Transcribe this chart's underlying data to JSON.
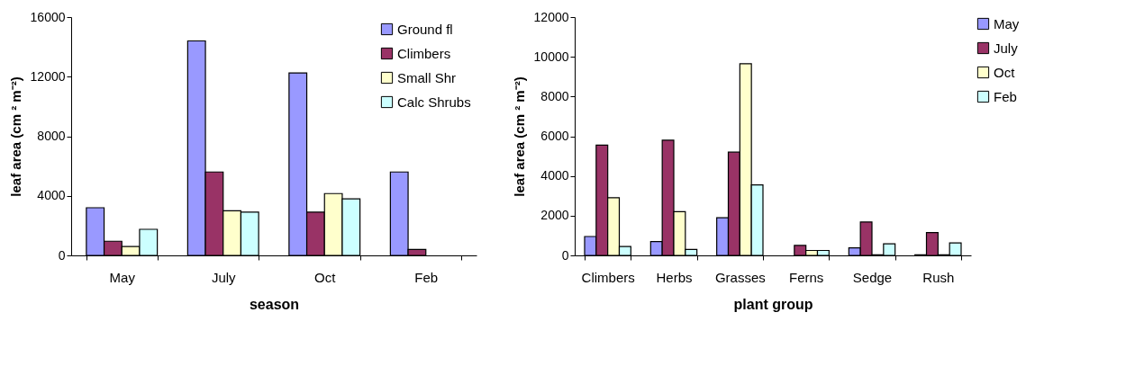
{
  "chart_data": [
    {
      "type": "bar",
      "xlabel": "season",
      "ylabel": "leaf area (cm ² m⁻²)",
      "categories": [
        "May",
        "July",
        "Oct",
        "Feb"
      ],
      "ylim": [
        0,
        16000
      ],
      "yticks": [
        0,
        4000,
        8000,
        12000,
        16000
      ],
      "grid": false,
      "legend": "top right",
      "series": [
        {
          "name": "Ground fl",
          "color": "#9999ff",
          "values": [
            3200,
            14400,
            12250,
            5600
          ]
        },
        {
          "name": "Climbers",
          "color": "#993366",
          "values": [
            950,
            5600,
            2900,
            400
          ]
        },
        {
          "name": "Small Shr",
          "color": "#ffffcc",
          "values": [
            600,
            3000,
            4150,
            null
          ]
        },
        {
          "name": "Calc Shrubs",
          "color": "#ccffff",
          "values": [
            1750,
            2900,
            3800,
            null
          ]
        }
      ]
    },
    {
      "type": "bar",
      "xlabel": "plant group",
      "ylabel": "leaf area (cm ² m⁻²)",
      "categories": [
        "Climbers",
        "Herbs",
        "Grasses",
        "Ferns",
        "Sedge",
        "Rush"
      ],
      "ylim": [
        0,
        12000
      ],
      "yticks": [
        0,
        2000,
        4000,
        6000,
        8000,
        10000,
        12000
      ],
      "grid": false,
      "legend": "right",
      "series": [
        {
          "name": "May",
          "color": "#9999ff",
          "values": [
            950,
            700,
            1900,
            null,
            380,
            30
          ]
        },
        {
          "name": "July",
          "color": "#993366",
          "values": [
            5550,
            5800,
            5200,
            500,
            1680,
            1150
          ]
        },
        {
          "name": "Oct",
          "color": "#ffffcc",
          "values": [
            2900,
            2200,
            9650,
            250,
            30,
            30
          ]
        },
        {
          "name": "Feb",
          "color": "#ccffff",
          "values": [
            450,
            300,
            3550,
            250,
            580,
            630
          ]
        }
      ]
    }
  ]
}
